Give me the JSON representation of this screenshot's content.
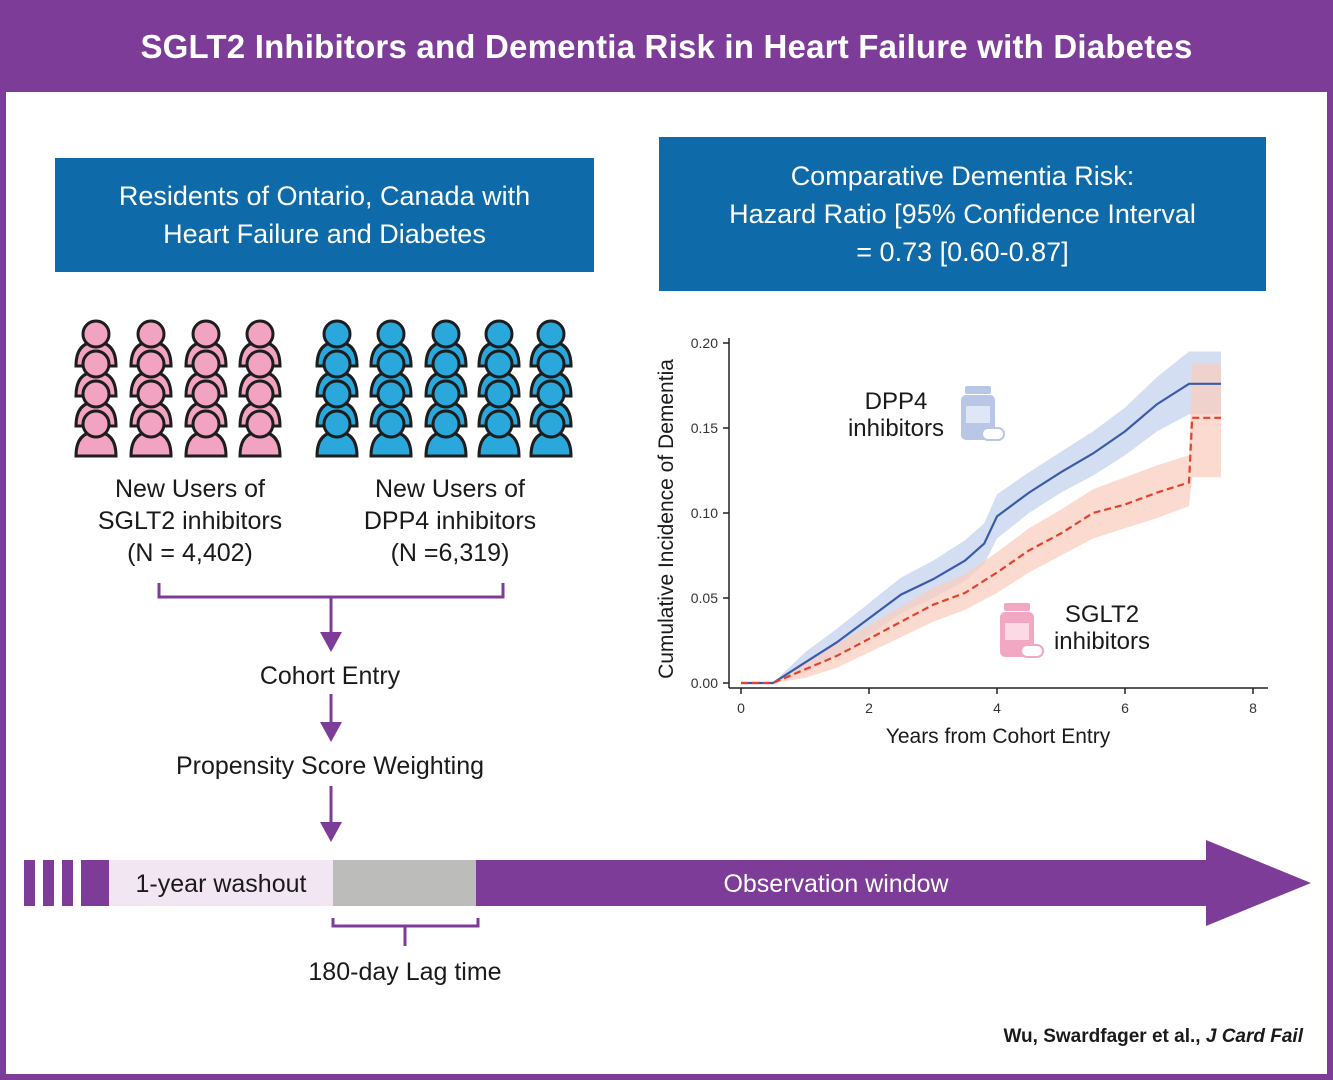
{
  "title": "SGLT2 Inhibitors and Dementia Risk in Heart Failure with Diabetes",
  "residents_box": {
    "line1": "Residents of Ontario, Canada with",
    "line2": "Heart Failure and Diabetes"
  },
  "hr_box": {
    "line1": "Comparative Dementia Risk:",
    "line2": "Hazard Ratio [95% Confidence Interval",
    "line3": "= 0.73 [0.60-0.87]"
  },
  "groups": {
    "sglt2": {
      "line1": "New Users of",
      "line2": "SGLT2 inhibitors",
      "line3": "(N = 4,402)",
      "color": "#f3a3c2"
    },
    "dpp4": {
      "line1": "New Users of",
      "line2": "DPP4 inhibitors",
      "line3": "(N =6,319)",
      "color": "#2aa8dc"
    }
  },
  "flow": {
    "cohort_entry": "Cohort Entry",
    "weighting": "Propensity Score Weighting"
  },
  "timeline": {
    "washout": "1-year washout",
    "observation": "Observation window",
    "lag": "180-day Lag time"
  },
  "citation": {
    "authors": "Wu, Swardfager et al.,",
    "journal": "J Card Fail"
  },
  "colors": {
    "purple": "#7d3c98",
    "blue_box": "#0e6aa8",
    "dpp4_line": "#3b5ba9",
    "sglt2_line": "#e2422e"
  },
  "chart_data": {
    "type": "line",
    "xlabel": "Years from Cohort Entry",
    "ylabel": "Cumulative Incidence of Dementia",
    "xlim": [
      0,
      8
    ],
    "ylim": [
      0,
      0.2
    ],
    "xticks": [
      "0",
      "2",
      "4",
      "6",
      "8"
    ],
    "yticks": [
      "0.00",
      "0.05",
      "0.10",
      "0.15",
      "0.20"
    ],
    "series": [
      {
        "name": "DPP4 inhibitors",
        "icon": "pill-bottle-icon",
        "color": "#3b5ba9",
        "style": "solid",
        "x": [
          0,
          0.5,
          1,
          1.5,
          2,
          2.5,
          3,
          3.5,
          3.8,
          4,
          4.5,
          5,
          5.5,
          6,
          6.5,
          7,
          7.5
        ],
        "y": [
          0,
          0,
          0.012,
          0.024,
          0.038,
          0.052,
          0.061,
          0.072,
          0.082,
          0.098,
          0.112,
          0.124,
          0.135,
          0.148,
          0.164,
          0.176,
          0.176
        ],
        "ci_low": [
          0,
          0,
          0.006,
          0.016,
          0.028,
          0.041,
          0.05,
          0.06,
          0.07,
          0.085,
          0.1,
          0.112,
          0.122,
          0.134,
          0.148,
          0.158,
          0.158
        ],
        "ci_high": [
          0,
          0,
          0.018,
          0.032,
          0.047,
          0.062,
          0.072,
          0.084,
          0.094,
          0.111,
          0.124,
          0.136,
          0.148,
          0.162,
          0.18,
          0.195,
          0.195
        ]
      },
      {
        "name": "SGLT2 inhibitors",
        "icon": "pill-bottle-icon",
        "color": "#e2422e",
        "style": "dashed",
        "x": [
          0,
          0.5,
          1,
          1.5,
          2,
          2.5,
          3,
          3.5,
          4,
          4.5,
          5,
          5.5,
          6,
          6.5,
          7,
          7.05,
          7.5
        ],
        "y": [
          0,
          0,
          0.008,
          0.016,
          0.026,
          0.036,
          0.046,
          0.053,
          0.065,
          0.078,
          0.088,
          0.1,
          0.105,
          0.112,
          0.118,
          0.156,
          0.156
        ],
        "ci_low": [
          0,
          0,
          0.003,
          0.009,
          0.018,
          0.027,
          0.036,
          0.043,
          0.053,
          0.065,
          0.075,
          0.085,
          0.091,
          0.097,
          0.104,
          0.121,
          0.121
        ],
        "ci_high": [
          0,
          0,
          0.013,
          0.023,
          0.034,
          0.045,
          0.056,
          0.064,
          0.077,
          0.091,
          0.102,
          0.114,
          0.121,
          0.128,
          0.134,
          0.188,
          0.188
        ]
      }
    ]
  }
}
